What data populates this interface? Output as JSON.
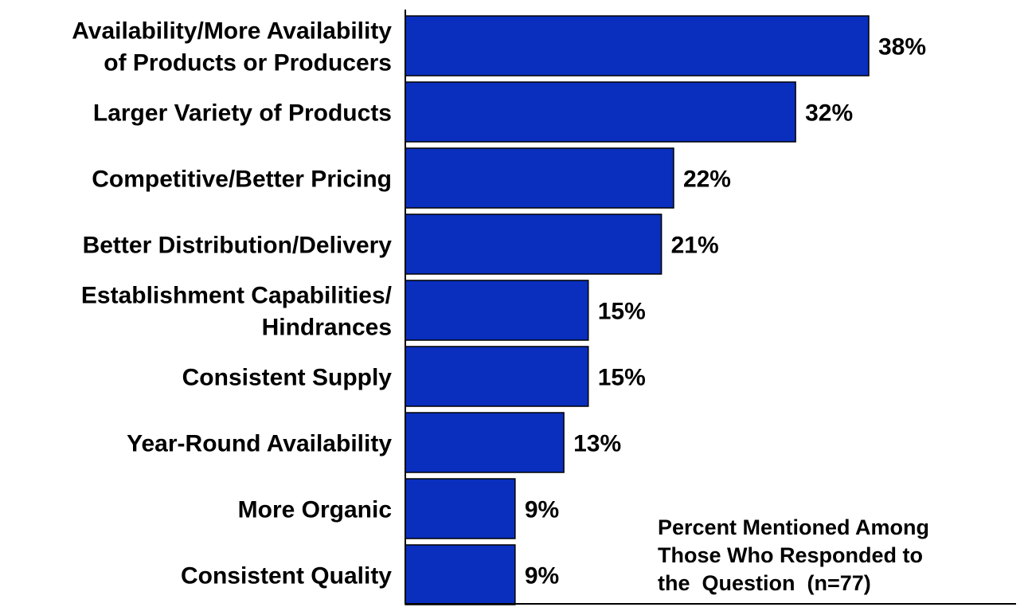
{
  "chart_data": {
    "type": "bar",
    "orientation": "horizontal",
    "categories": [
      [
        "Availability/More Availability",
        "of Products or Producers"
      ],
      [
        "Larger Variety of Products"
      ],
      [
        "Competitive/Better Pricing"
      ],
      [
        "Better Distribution/Delivery"
      ],
      [
        "Establishment Capabilities/",
        "Hindrances"
      ],
      [
        "Consistent Supply"
      ],
      [
        "Year-Round Availability"
      ],
      [
        "More Organic"
      ],
      [
        "Consistent Quality"
      ]
    ],
    "values": [
      38,
      32,
      22,
      21,
      15,
      15,
      13,
      9,
      9
    ],
    "value_labels": [
      "38%",
      "32%",
      "22%",
      "21%",
      "15%",
      "15%",
      "13%",
      "9%",
      "9%"
    ],
    "annotation": "Percent Mentioned Among\nThose Who Responded to\nthe  Question  (n=77)",
    "xlim": [
      0,
      50
    ],
    "grid": false,
    "bar_color": "#0a2fbe",
    "bar_edge_color": "#000000"
  }
}
